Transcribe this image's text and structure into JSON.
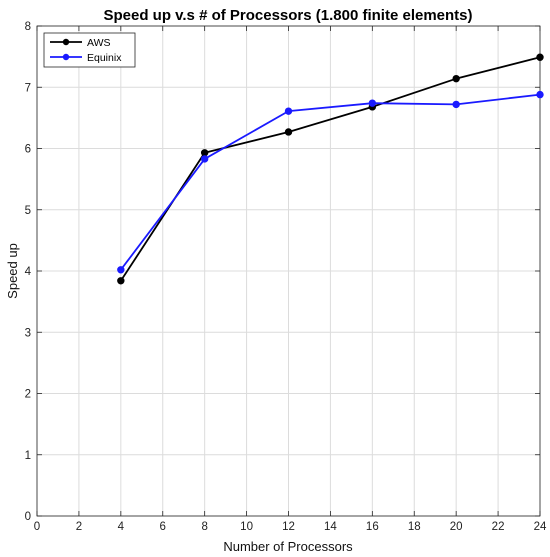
{
  "chart_data": {
    "type": "line",
    "title": "Speed up v.s # of Processors (1.800 finite elements)",
    "xlabel": "Number of Processors",
    "ylabel": "Speed up",
    "xlim": [
      0,
      24
    ],
    "ylim": [
      0,
      8
    ],
    "xticks": [
      0,
      2,
      4,
      6,
      8,
      10,
      12,
      14,
      16,
      18,
      20,
      22,
      24
    ],
    "yticks": [
      0,
      1,
      2,
      3,
      4,
      5,
      6,
      7,
      8
    ],
    "grid": true,
    "legend_position": "top-left",
    "x": [
      4,
      8,
      12,
      16,
      20,
      24
    ],
    "series": [
      {
        "name": "AWS",
        "color": "#000000",
        "values": [
          3.84,
          5.93,
          6.27,
          6.68,
          7.14,
          7.49
        ]
      },
      {
        "name": "Equinix",
        "color": "#1a1aff",
        "values": [
          4.02,
          5.83,
          6.61,
          6.74,
          6.72,
          6.88
        ]
      }
    ]
  }
}
